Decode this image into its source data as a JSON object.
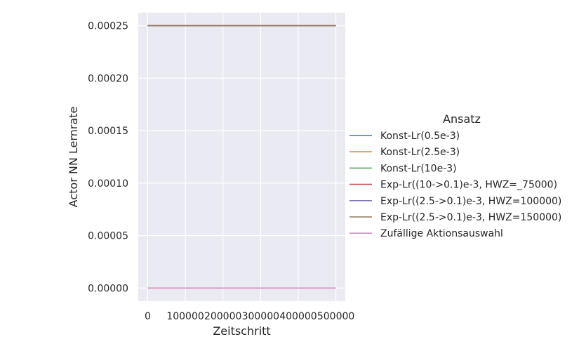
{
  "chart_data": {
    "type": "line",
    "xlabel": "Zeitschritt",
    "ylabel": "Actor NN Lernrate",
    "xlim": [
      -25000,
      525000
    ],
    "ylim": [
      -1.25e-05,
      0.0002625
    ],
    "x_ticks": [
      0,
      100000,
      200000,
      300000,
      400000,
      500000
    ],
    "x_tick_labels": [
      "0",
      "100000",
      "200000",
      "300000",
      "400000",
      "500000"
    ],
    "y_ticks": [
      0.0,
      5e-05,
      0.0001,
      0.00015,
      0.0002,
      0.00025
    ],
    "y_tick_labels": [
      "0.00000",
      "0.00005",
      "0.00010",
      "0.00015",
      "0.00020",
      "0.00025"
    ],
    "grid": true,
    "background": "#eaeaf2",
    "legend": {
      "title": "Ansatz",
      "placement": "right"
    },
    "series": [
      {
        "name": "Konst-Lr(0.5e-3)",
        "color": "#4c72b0",
        "x": [
          0,
          500000
        ],
        "y": [
          0.00025,
          0.00025
        ]
      },
      {
        "name": "Konst-Lr(2.5e-3)",
        "color": "#dd8452",
        "x": [
          0,
          500000
        ],
        "y": [
          0.00025,
          0.00025
        ]
      },
      {
        "name": "Konst-Lr(10e-3)",
        "color": "#55a868",
        "x": [
          0,
          500000
        ],
        "y": [
          0.00025,
          0.00025
        ]
      },
      {
        "name": "Exp-Lr((10->0.1)e-3, HWZ=_75000)",
        "color": "#c44e52",
        "x": [
          0,
          500000
        ],
        "y": [
          0.00025,
          0.00025
        ]
      },
      {
        "name": "Exp-Lr((2.5->0.1)e-3, HWZ=100000)",
        "color": "#8172b3",
        "x": [
          0,
          500000
        ],
        "y": [
          0.00025,
          0.00025
        ]
      },
      {
        "name": "Exp-Lr((2.5->0.1)e-3, HWZ=150000)",
        "color": "#937860",
        "x": [
          0,
          500000
        ],
        "y": [
          0.00025,
          0.00025
        ]
      },
      {
        "name": "Zufällige Aktionsauswahl",
        "color": "#da8bc3",
        "x": [
          0,
          500000
        ],
        "y": [
          0.0,
          0.0
        ]
      }
    ]
  }
}
